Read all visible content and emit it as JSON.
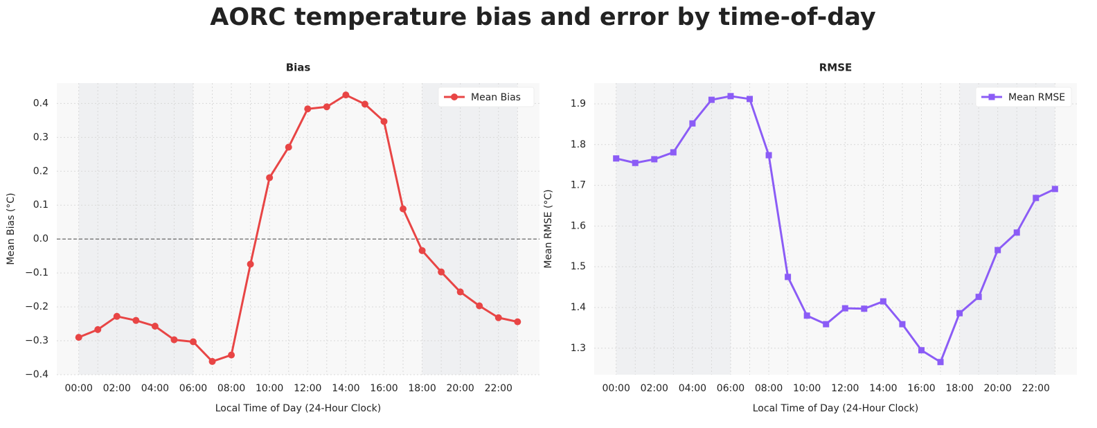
{
  "title": "AORC temperature bias and error by time-of-day",
  "chart_data": [
    {
      "type": "line",
      "title": "Bias",
      "x_label": "Local Time of Day (24-Hour Clock)",
      "y_label": "Mean Bias (°C)",
      "x": [
        0,
        1,
        2,
        3,
        4,
        5,
        6,
        7,
        8,
        9,
        10,
        11,
        12,
        13,
        14,
        15,
        16,
        17,
        18,
        19,
        20,
        21,
        22,
        23
      ],
      "series": [
        {
          "name": "Mean Bias",
          "color": "#e84545",
          "marker": "circle",
          "values": [
            -0.29,
            -0.267,
            -0.228,
            -0.24,
            -0.257,
            -0.297,
            -0.303,
            -0.361,
            -0.342,
            -0.074,
            0.181,
            0.271,
            0.384,
            0.39,
            0.425,
            0.398,
            0.347,
            0.089,
            -0.034,
            -0.097,
            -0.156,
            -0.197,
            -0.232,
            -0.244
          ]
        }
      ],
      "xlim": [
        -1.15,
        24.15
      ],
      "xticks": [
        {
          "value": 0,
          "label": "00:00"
        },
        {
          "value": 2,
          "label": "02:00"
        },
        {
          "value": 4,
          "label": "04:00"
        },
        {
          "value": 6,
          "label": "06:00"
        },
        {
          "value": 8,
          "label": "08:00"
        },
        {
          "value": 10,
          "label": "10:00"
        },
        {
          "value": 12,
          "label": "12:00"
        },
        {
          "value": 14,
          "label": "14:00"
        },
        {
          "value": 16,
          "label": "16:00"
        },
        {
          "value": 18,
          "label": "18:00"
        },
        {
          "value": 20,
          "label": "20:00"
        },
        {
          "value": 22,
          "label": "22:00"
        }
      ],
      "ylim": [
        -0.4,
        0.46
      ],
      "yticks": [
        {
          "value": -0.4,
          "label": "−0.4"
        },
        {
          "value": -0.3,
          "label": "−0.3"
        },
        {
          "value": -0.2,
          "label": "−0.2"
        },
        {
          "value": -0.1,
          "label": "−0.1"
        },
        {
          "value": 0,
          "label": "0.0"
        },
        0.1,
        0.2,
        0.3,
        0.4
      ],
      "shaded_ranges": [
        [
          0,
          6
        ],
        [
          18,
          23
        ]
      ],
      "reference_line": 0,
      "grid": true,
      "legend": "upper right"
    },
    {
      "type": "line",
      "title": "RMSE",
      "x_label": "Local Time of Day (24-Hour Clock)",
      "y_label": "Mean RMSE (°C)",
      "x": [
        0,
        1,
        2,
        3,
        4,
        5,
        6,
        7,
        8,
        9,
        10,
        11,
        12,
        13,
        14,
        15,
        16,
        17,
        18,
        19,
        20,
        21,
        22,
        23
      ],
      "series": [
        {
          "name": "Mean RMSE",
          "color": "#8b5cf6",
          "marker": "square",
          "values": [
            1.766,
            1.755,
            1.764,
            1.781,
            1.852,
            1.91,
            1.919,
            1.912,
            1.774,
            1.475,
            1.38,
            1.359,
            1.398,
            1.397,
            1.415,
            1.359,
            1.295,
            1.266,
            1.386,
            1.426,
            1.541,
            1.584,
            1.669,
            1.691
          ]
        }
      ],
      "xlim": [
        -1.15,
        24.15
      ],
      "xticks": [
        {
          "value": 0,
          "label": "00:00"
        },
        {
          "value": 2,
          "label": "02:00"
        },
        {
          "value": 4,
          "label": "04:00"
        },
        {
          "value": 6,
          "label": "06:00"
        },
        {
          "value": 8,
          "label": "08:00"
        },
        {
          "value": 10,
          "label": "10:00"
        },
        {
          "value": 12,
          "label": "12:00"
        },
        {
          "value": 14,
          "label": "14:00"
        },
        {
          "value": 16,
          "label": "16:00"
        },
        {
          "value": 18,
          "label": "18:00"
        },
        {
          "value": 20,
          "label": "20:00"
        },
        {
          "value": 22,
          "label": "22:00"
        }
      ],
      "ylim": [
        1.235,
        1.951
      ],
      "yticks": [
        1.3,
        1.4,
        1.5,
        1.6,
        1.7,
        1.8,
        1.9
      ],
      "shaded_ranges": [
        [
          0,
          6
        ],
        [
          18,
          23
        ]
      ],
      "grid": true,
      "legend": "upper right"
    }
  ]
}
